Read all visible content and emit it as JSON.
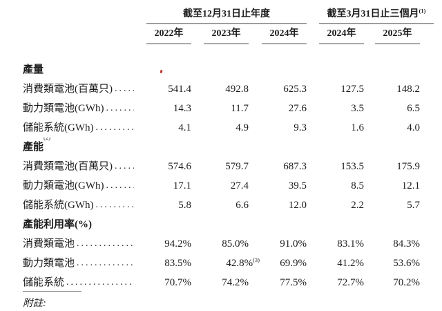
{
  "colors": {
    "background": "#ffffff",
    "text": "#1c1c1c",
    "header_rule": "#3f3f3f",
    "footnote_rule": "#8a8a8a",
    "red_mark": "#c0392b"
  },
  "leader": {
    "dots": "............................................."
  },
  "header": {
    "group_annual": {
      "label": "截至12月31日止年度",
      "sup": ""
    },
    "group_quarter": {
      "label": "截至3月31日止三個月",
      "sup": "(1)"
    },
    "years": [
      "2022年",
      "2023年",
      "2024年",
      "2024年",
      "2025年"
    ]
  },
  "sections": [
    {
      "title": "產量",
      "sup": "",
      "rows": [
        {
          "label": "消費類電池(百萬只)",
          "values": [
            "541.4",
            "492.8",
            "625.3",
            "127.5",
            "148.2"
          ]
        },
        {
          "label": "動力類電池(GWh)",
          "values": [
            "14.3",
            "11.7",
            "27.6",
            "3.5",
            "6.5"
          ]
        },
        {
          "label": "儲能系統(GWh)",
          "values": [
            "4.1",
            "4.9",
            "9.3",
            "1.6",
            "4.0"
          ]
        }
      ]
    },
    {
      "title": "產能",
      "sup": "(2)",
      "rows": [
        {
          "label": "消費類電池(百萬只)",
          "values": [
            "574.6",
            "579.7",
            "687.3",
            "153.5",
            "175.9"
          ]
        },
        {
          "label": "動力類電池(GWh)",
          "values": [
            "17.1",
            "27.4",
            "39.5",
            "8.5",
            "12.1"
          ]
        },
        {
          "label": "儲能系統(GWh)",
          "values": [
            "5.8",
            "6.6",
            "12.0",
            "2.2",
            "5.7"
          ]
        }
      ]
    },
    {
      "title": "產能利用率(%)",
      "sup": "",
      "rows": [
        {
          "label": "消費類電池",
          "values": [
            "94.2%",
            "85.0%",
            "91.0%",
            "83.1%",
            "84.3%"
          ]
        },
        {
          "label": "動力類電池",
          "values": [
            "83.5%",
            "42.8%",
            "69.9%",
            "41.2%",
            "53.6%"
          ],
          "sup": "(3)"
        },
        {
          "label": "儲能系統",
          "values": [
            "70.7%",
            "74.2%",
            "77.5%",
            "72.7%",
            "70.2%"
          ]
        }
      ]
    }
  ],
  "footnote": {
    "label": "附註:"
  }
}
